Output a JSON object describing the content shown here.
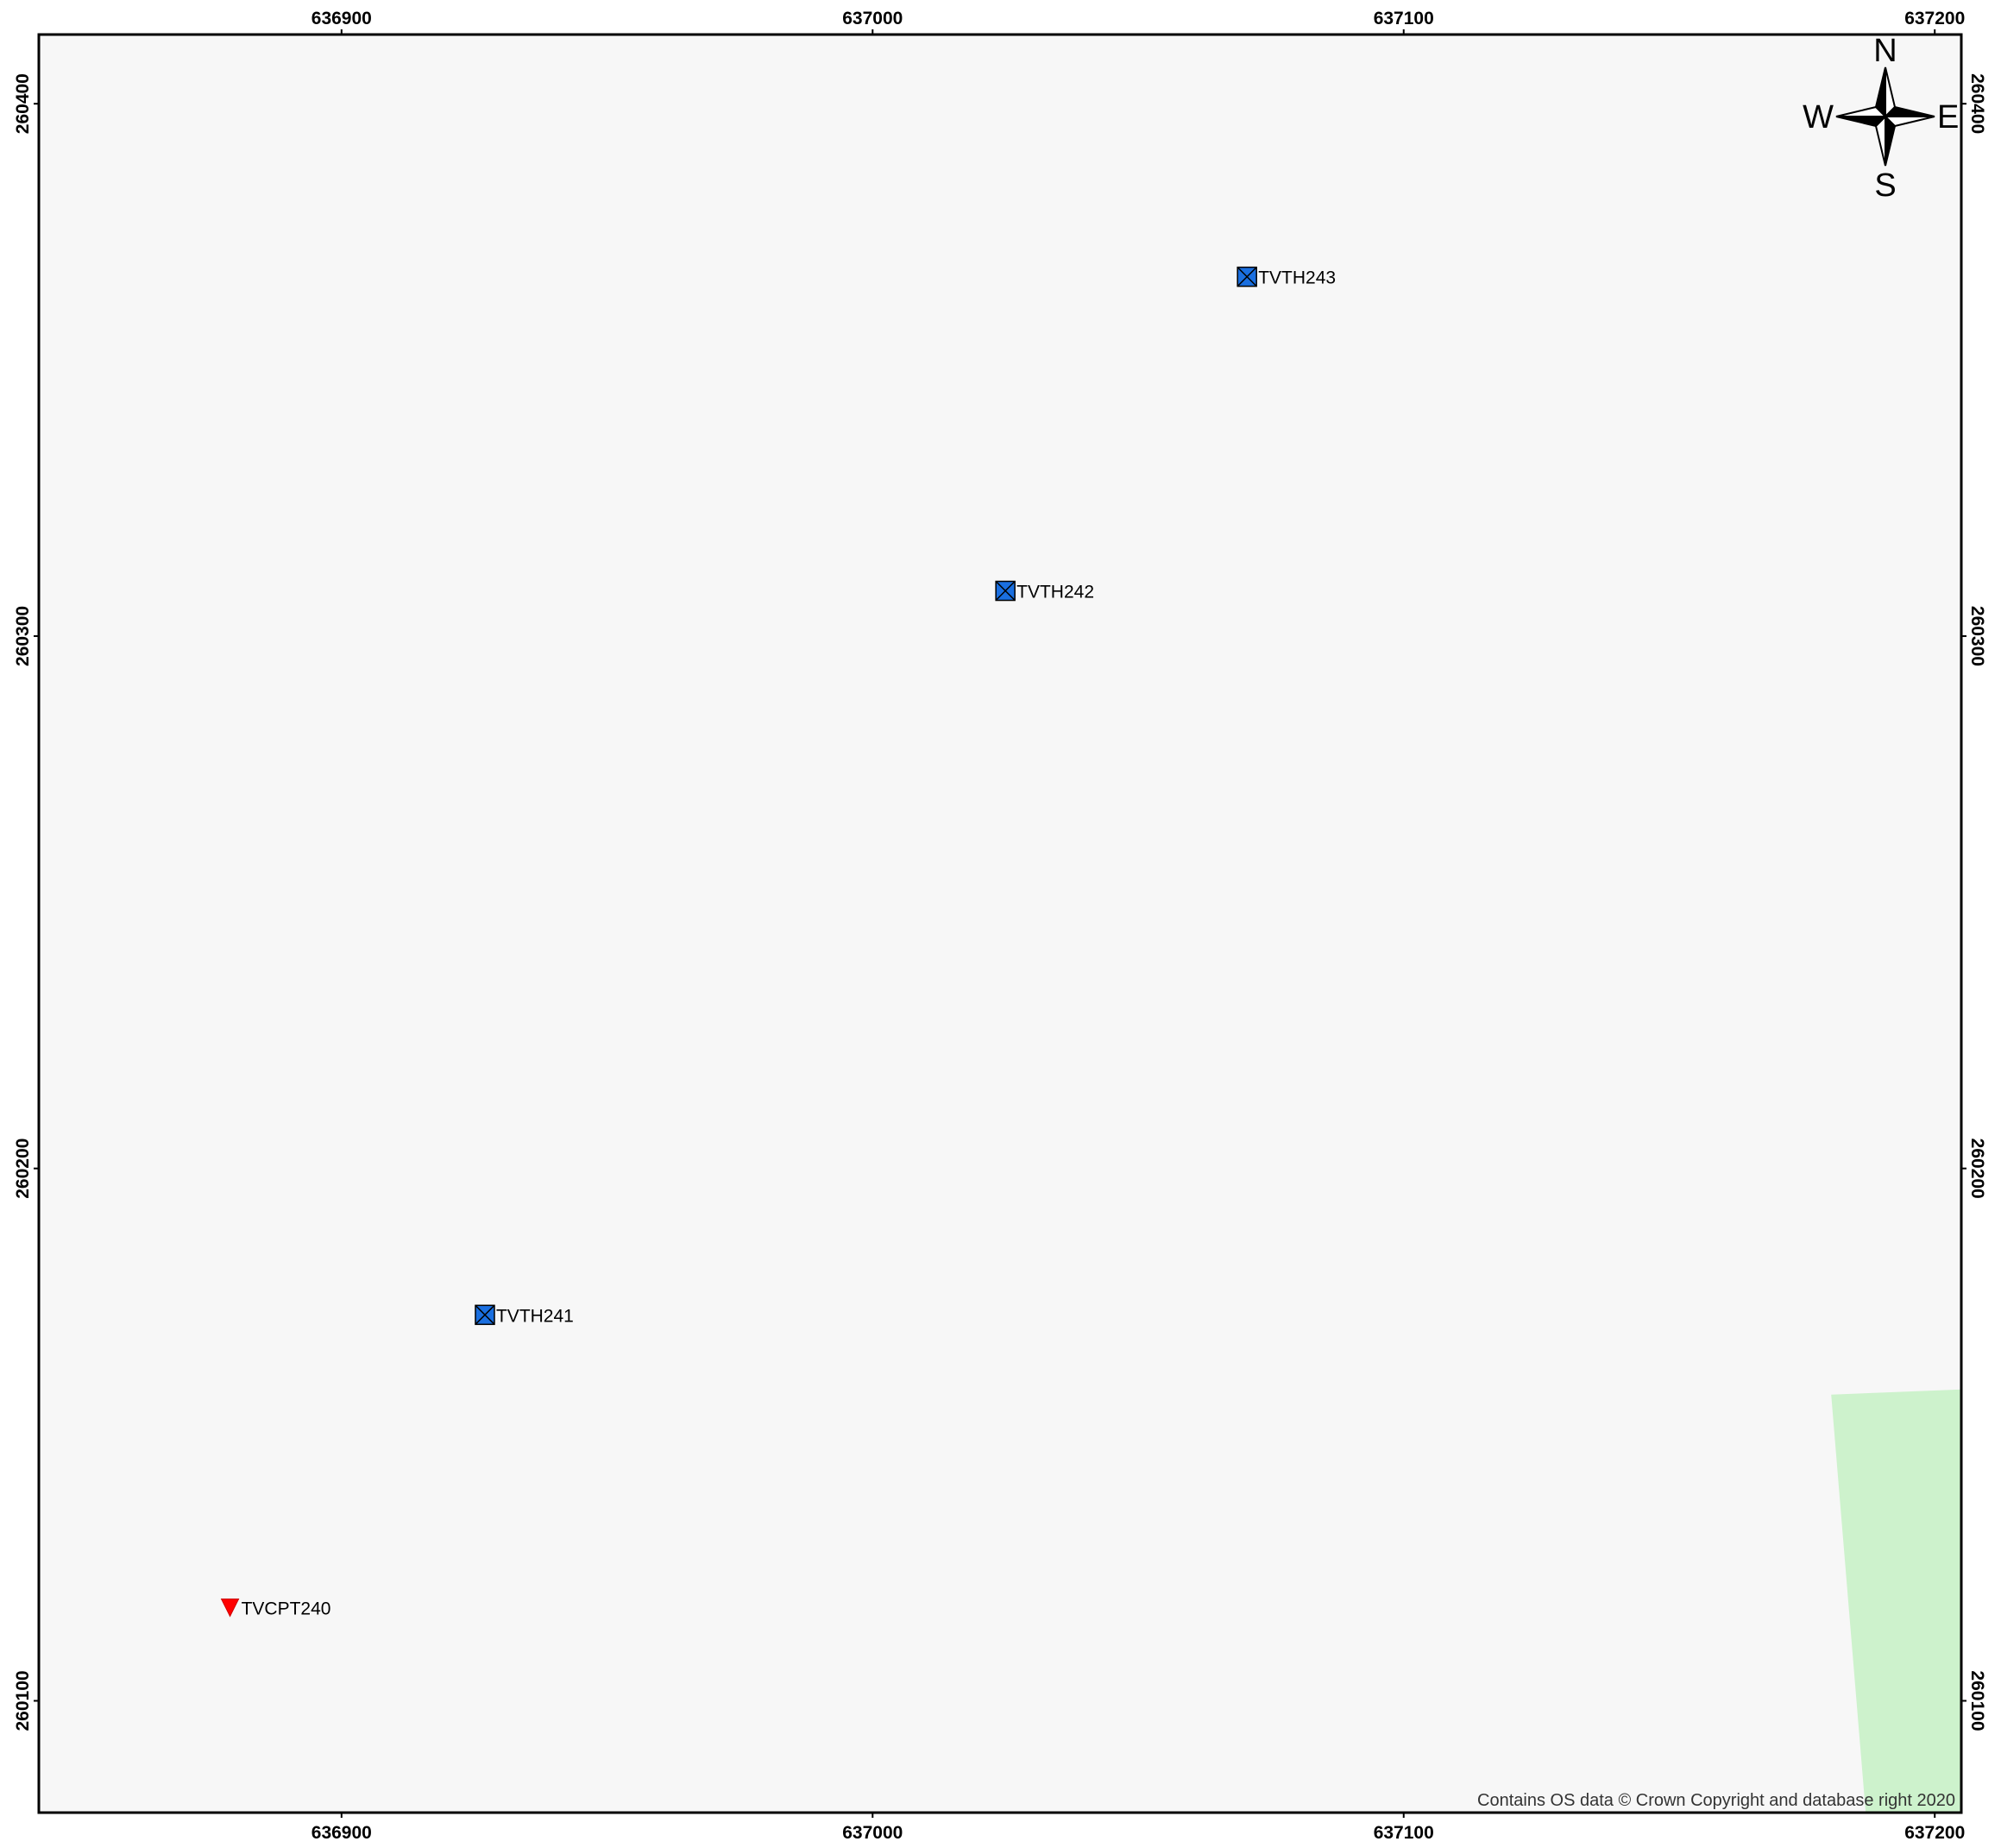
{
  "map": {
    "extent": {
      "easting": [
        636843,
        637205
      ],
      "northing": [
        260079,
        260413
      ]
    },
    "background_color": "#f7f7f7",
    "frame_color": "#000000",
    "x_ticks": [
      {
        "value": 636900,
        "label": "636900"
      },
      {
        "value": 637000,
        "label": "637000"
      },
      {
        "value": 637100,
        "label": "637100"
      },
      {
        "value": 637200,
        "label": "637200"
      }
    ],
    "y_ticks": [
      {
        "value": 260100,
        "label": "260100"
      },
      {
        "value": 260200,
        "label": "260200"
      },
      {
        "value": 260300,
        "label": "260300"
      },
      {
        "value": 260400,
        "label": "260400"
      }
    ],
    "points": [
      {
        "id": "TVTH243",
        "label": "TVTH243",
        "type": "borehole",
        "easting": 637070.5,
        "northing": 260367.5
      },
      {
        "id": "TVTH242",
        "label": "TVTH242",
        "type": "borehole",
        "easting": 637025,
        "northing": 260308.5
      },
      {
        "id": "TVTH241",
        "label": "TVTH241",
        "type": "borehole",
        "easting": 636927,
        "northing": 260172.5
      },
      {
        "id": "TVCPT240",
        "label": "TVCPT240",
        "type": "cpt",
        "easting": 636879,
        "northing": 260117.5
      }
    ],
    "symbols": {
      "borehole": {
        "icon": "borehole-square-cross-icon",
        "fill": "#1a6fe0",
        "stroke": "#000000"
      },
      "cpt": {
        "icon": "cpt-down-triangle-icon",
        "fill": "#ff0000",
        "stroke": "#cc0000"
      }
    },
    "green_area": {
      "color": "#cdf2cc",
      "polygon": [
        [
          637180.5,
          260157.5
        ],
        [
          637205,
          260158.5
        ],
        [
          637205,
          260079
        ],
        [
          637187,
          260079
        ]
      ]
    },
    "compass": {
      "icon": "north-arrow-compass-icon",
      "north": "N",
      "south": "S",
      "east": "E",
      "west": "W"
    },
    "copyright": "Contains OS data © Crown Copyright and database right 2020"
  }
}
